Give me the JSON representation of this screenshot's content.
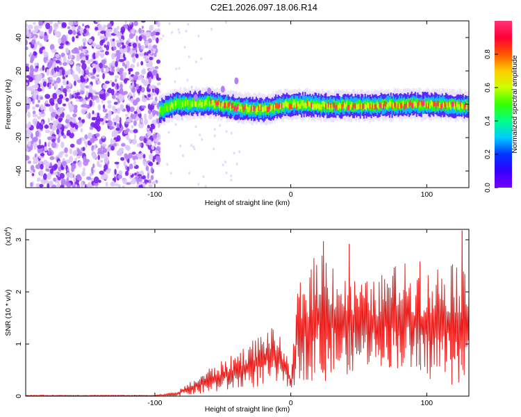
{
  "title": "C2E1.2026.097.18.06.R14",
  "chart_data": [
    {
      "type": "heatmap",
      "title": "C2E1.2026.097.18.06.R14",
      "xlabel": "Height of straight line (km)",
      "ylabel": "Frequency (Hz)",
      "xlim": [
        -195,
        131
      ],
      "ylim": [
        -50,
        50
      ],
      "x_ticks": [
        -100,
        0,
        100
      ],
      "y_ticks": [
        -40,
        -20,
        0,
        20,
        40
      ],
      "x_tick_labels": [
        "-100",
        "0",
        "100"
      ],
      "y_tick_labels": [
        "-40",
        "-20",
        "0",
        "20",
        "40"
      ],
      "noise_region_x": [
        -195,
        -97
      ],
      "signal_region_x": [
        -97,
        131
      ],
      "signal_center_hz": [
        {
          "x": -97,
          "y": -4
        },
        {
          "x": -85,
          "y": 0
        },
        {
          "x": -60,
          "y": 1
        },
        {
          "x": -40,
          "y": -2
        },
        {
          "x": -20,
          "y": -3
        },
        {
          "x": 0,
          "y": 0
        },
        {
          "x": 30,
          "y": -1
        },
        {
          "x": 60,
          "y": -1
        },
        {
          "x": 90,
          "y": 0
        },
        {
          "x": 131,
          "y": -1
        }
      ],
      "colorbar": {
        "label": "Normalized spectral amplitude",
        "range": [
          0,
          1
        ],
        "ticks": [
          0.0,
          0.2,
          0.4,
          0.6,
          0.8
        ],
        "tick_labels": [
          "0.0",
          "0.2",
          "0.4",
          "0.6",
          "0.8"
        ],
        "colors": [
          "#7700ff",
          "#3300ff",
          "#0033ff",
          "#00ccff",
          "#00ff88",
          "#33ff00",
          "#ccff00",
          "#ffcc00",
          "#ff5500",
          "#ff0033",
          "#ff3377"
        ]
      }
    },
    {
      "type": "line",
      "xlabel": "Height of straight line (km)",
      "ylabel": "SNR (10 * v/v)",
      "y_scale_label": "(x10",
      "y_scale_exponent": "4",
      "y_scale_suffix": ")",
      "xlim": [
        -195,
        131
      ],
      "ylim": [
        0,
        3.2
      ],
      "x_ticks": [
        -100,
        0,
        100
      ],
      "y_ticks": [
        0,
        1,
        2,
        3
      ],
      "x_tick_labels": [
        "-100",
        "0",
        "100"
      ],
      "y_tick_labels": [
        "0",
        "1",
        "2",
        "3"
      ],
      "color": "#e8201e",
      "envelope": [
        {
          "x": -195,
          "lo": 0.0,
          "hi": 0.02
        },
        {
          "x": -100,
          "lo": 0.0,
          "hi": 0.02
        },
        {
          "x": -85,
          "lo": 0.0,
          "hi": 0.08
        },
        {
          "x": -75,
          "lo": 0.02,
          "hi": 0.25
        },
        {
          "x": -60,
          "lo": 0.05,
          "hi": 0.55
        },
        {
          "x": -45,
          "lo": 0.1,
          "hi": 0.75
        },
        {
          "x": -30,
          "lo": 0.15,
          "hi": 1.05
        },
        {
          "x": -15,
          "lo": 0.2,
          "hi": 1.35
        },
        {
          "x": -5,
          "lo": 0.25,
          "hi": 1.05
        },
        {
          "x": 0,
          "lo": 0.1,
          "hi": 0.35
        },
        {
          "x": 5,
          "lo": 0.3,
          "hi": 2.1
        },
        {
          "x": 15,
          "lo": 0.3,
          "hi": 2.6
        },
        {
          "x": 25,
          "lo": 0.25,
          "hi": 2.95
        },
        {
          "x": 40,
          "lo": 0.4,
          "hi": 2.3
        },
        {
          "x": 60,
          "lo": 0.6,
          "hi": 2.2
        },
        {
          "x": 80,
          "lo": 0.5,
          "hi": 2.6
        },
        {
          "x": 100,
          "lo": 0.3,
          "hi": 2.4
        },
        {
          "x": 120,
          "lo": 0.2,
          "hi": 2.75
        },
        {
          "x": 131,
          "lo": 0.3,
          "hi": 2.2
        }
      ],
      "peaks": [
        {
          "x": 24,
          "y": 2.97
        },
        {
          "x": 43,
          "y": 2.92
        },
        {
          "x": 95,
          "y": 2.58
        },
        {
          "x": 126,
          "y": 3.18
        }
      ]
    }
  ]
}
